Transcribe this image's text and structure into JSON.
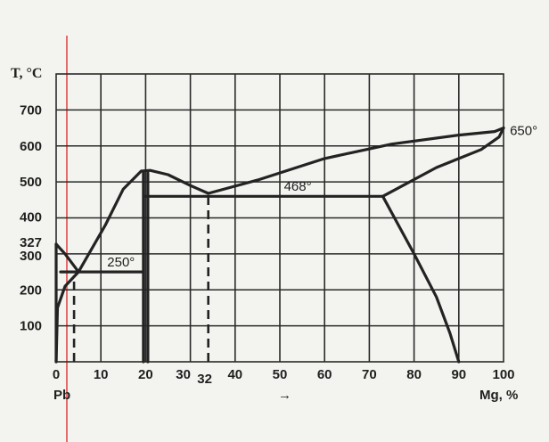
{
  "chart_data": {
    "type": "line",
    "title": "",
    "ylabel": "T, °C",
    "xlabel_left": "Pb",
    "xlabel_arrow": "→",
    "xlabel_right": "Mg, %",
    "xlim": [
      0,
      100
    ],
    "ylim": [
      0,
      800
    ],
    "grid": true,
    "x_ticks": [
      "0",
      "10",
      "20",
      "30",
      "32",
      "40",
      "50",
      "60",
      "70",
      "80",
      "90",
      "100"
    ],
    "x_tick_values": [
      0,
      10,
      20,
      30,
      32,
      40,
      50,
      60,
      70,
      80,
      90,
      100
    ],
    "y_ticks": [
      "100",
      "200",
      "300",
      "327",
      "400",
      "500",
      "600",
      "700"
    ],
    "y_tick_values": [
      100,
      200,
      300,
      327,
      400,
      500,
      600,
      700
    ],
    "annotations": [
      {
        "text": "250°",
        "x": 14.5,
        "y": 265
      },
      {
        "text": "468°",
        "x": 54,
        "y": 475
      },
      {
        "text": "650°",
        "x": 104.5,
        "y": 630
      }
    ],
    "series": [
      {
        "values": [
          [
            0,
            327
          ],
          [
            2,
            300
          ],
          [
            5,
            250
          ]
        ]
      },
      {
        "values": [
          [
            0,
            0
          ],
          [
            0.3,
            150
          ],
          [
            2,
            210
          ],
          [
            5,
            250
          ]
        ]
      },
      {
        "values": [
          [
            5,
            250
          ],
          [
            11,
            380
          ],
          [
            15,
            480
          ],
          [
            19,
            530
          ],
          [
            21,
            532
          ],
          [
            25,
            520
          ],
          [
            30,
            490
          ],
          [
            34,
            468
          ]
        ]
      },
      {
        "values": [
          [
            34,
            468
          ],
          [
            45,
            505
          ],
          [
            60,
            565
          ],
          [
            75,
            605
          ],
          [
            90,
            630
          ],
          [
            98,
            640
          ],
          [
            100,
            650
          ]
        ]
      },
      {
        "values": [
          [
            73,
            460
          ],
          [
            85,
            540
          ],
          [
            95,
            590
          ],
          [
            99,
            625
          ],
          [
            100,
            650
          ]
        ]
      },
      {
        "values": [
          [
            73,
            460
          ],
          [
            80,
            300
          ],
          [
            85,
            180
          ],
          [
            88,
            80
          ],
          [
            90,
            0
          ]
        ]
      },
      {
        "values": [
          [
            1,
            250
          ],
          [
            19.5,
            250
          ]
        ]
      },
      {
        "values": [
          [
            20,
            460
          ],
          [
            73,
            460
          ]
        ]
      },
      {
        "values": [
          [
            0,
            0
          ],
          [
            0,
            327
          ]
        ]
      },
      {
        "values": [
          [
            19.5,
            0
          ],
          [
            19.5,
            525
          ]
        ]
      },
      {
        "values": [
          [
            20.5,
            0
          ],
          [
            20.5,
            525
          ]
        ]
      }
    ],
    "dashed_series": [
      {
        "values": [
          [
            4,
            0
          ],
          [
            4,
            240
          ]
        ]
      },
      {
        "values": [
          [
            34,
            0
          ],
          [
            34,
            460
          ]
        ]
      }
    ]
  }
}
